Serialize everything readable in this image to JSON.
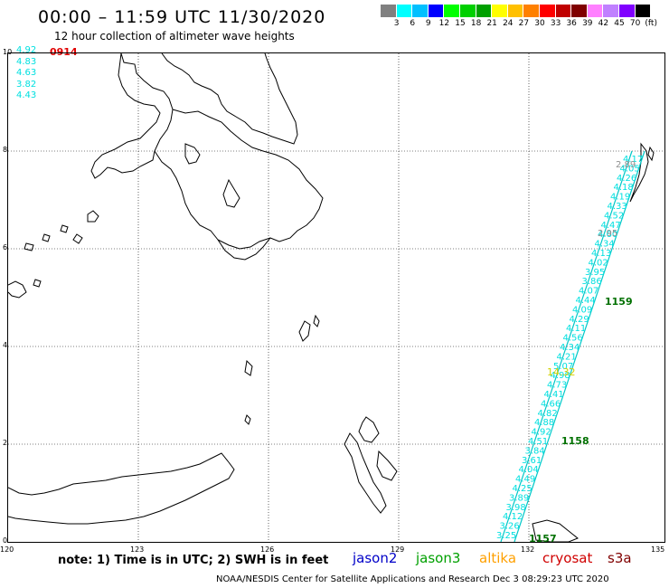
{
  "header": {
    "title": "00:00 – 11:59 UTC 11/30/2020",
    "subtitle": "12 hour collection of altimeter wave heights"
  },
  "color_scale": {
    "colors": [
      "#808080",
      "#00ffff",
      "#00c0ff",
      "#0000ff",
      "#00ff00",
      "#00d000",
      "#00a000",
      "#ffff00",
      "#ffc000",
      "#ff8000",
      "#ff0000",
      "#c00000",
      "#800000",
      "#ff80ff",
      "#c080ff",
      "#8000ff",
      "#000000"
    ],
    "labels": [
      "3",
      "6",
      "9",
      "12",
      "15",
      "18",
      "21",
      "24",
      "27",
      "30",
      "33",
      "36",
      "39",
      "42",
      "45",
      "70",
      "(ft)"
    ]
  },
  "legend_values": [
    "4.92",
    "4.83",
    "4.63",
    "3.82",
    "4.43"
  ],
  "legend_time": "0914",
  "axes": {
    "y_ticks": [
      "10",
      "8",
      "6",
      "4",
      "2",
      "0"
    ],
    "x_ticks": [
      "120",
      "123",
      "126",
      "129",
      "132",
      "135"
    ]
  },
  "track_labels": {
    "gray_values": [
      "2.89",
      "2.95"
    ],
    "yellow_value": "14.32",
    "green_times": [
      "1159",
      "1158",
      "1157"
    ],
    "cyan_values": [
      "3.25",
      "3.26",
      "4.12",
      "3.98",
      "3.89",
      "4.25",
      "4.49",
      "4.04",
      "3.61",
      "3.84",
      "4.51",
      "4.92",
      "4.88",
      "4.82",
      "4.66",
      "4.41",
      "4.73",
      "4.98",
      "5.07",
      "4.21",
      "4.34",
      "4.56",
      "4.11",
      "4.29",
      "4.09",
      "4.44",
      "4.07",
      "3.86",
      "3.95",
      "4.02",
      "4.13",
      "4.34",
      "4.60",
      "4.47",
      "4.52",
      "4.33",
      "4.19",
      "4.18",
      "4.26",
      "4.05",
      "4.17"
    ]
  },
  "footer": {
    "note": "note: 1) Time is in UTC; 2) SWH is in feet",
    "satellites": [
      {
        "name": "jason2",
        "color": "#0000c8"
      },
      {
        "name": "jason3",
        "color": "#00a000"
      },
      {
        "name": "altika",
        "color": "#ffa000"
      },
      {
        "name": "cryosat",
        "color": "#d00000"
      },
      {
        "name": "s3a",
        "color": "#800000"
      }
    ],
    "credit": "NOAA/NESDIS Center for Satellite Applications and Research   Dec  3 08:29:23 UTC 2020"
  }
}
